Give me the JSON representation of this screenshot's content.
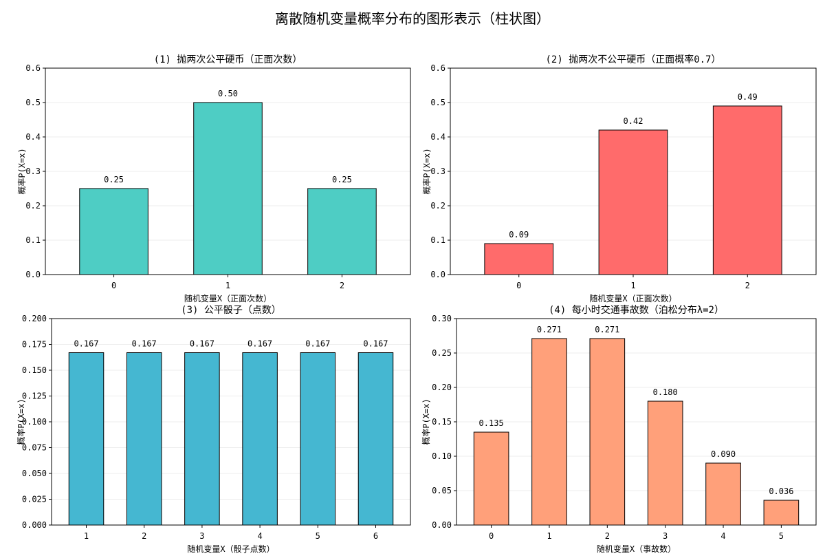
{
  "figure": {
    "title": "离散随机变量概率分布的图形表示（柱状图）"
  },
  "chart_data": [
    {
      "type": "bar",
      "title": "(1) 抛两次公平硬币（正面次数）",
      "xlabel": "随机变量X（正面次数）",
      "ylabel": "概率P(X=x)",
      "categories": [
        "0",
        "1",
        "2"
      ],
      "values": [
        0.25,
        0.5,
        0.25
      ],
      "value_labels": [
        "0.25",
        "0.50",
        "0.25"
      ],
      "ylim": [
        0,
        0.6
      ],
      "yticks": [
        0.0,
        0.1,
        0.2,
        0.3,
        0.4,
        0.5,
        0.6
      ],
      "ytick_labels": [
        "0.0",
        "0.1",
        "0.2",
        "0.3",
        "0.4",
        "0.5",
        "0.6"
      ],
      "color": "#4ECDC4",
      "grid": "y"
    },
    {
      "type": "bar",
      "title": "(2) 抛两次不公平硬币（正面概率0.7）",
      "xlabel": "随机变量X（正面次数）",
      "ylabel": "概率P(X=x)",
      "categories": [
        "0",
        "1",
        "2"
      ],
      "values": [
        0.09,
        0.42,
        0.49
      ],
      "value_labels": [
        "0.09",
        "0.42",
        "0.49"
      ],
      "ylim": [
        0,
        0.6
      ],
      "yticks": [
        0.0,
        0.1,
        0.2,
        0.3,
        0.4,
        0.5,
        0.6
      ],
      "ytick_labels": [
        "0.0",
        "0.1",
        "0.2",
        "0.3",
        "0.4",
        "0.5",
        "0.6"
      ],
      "color": "#FF6B6B",
      "grid": "y"
    },
    {
      "type": "bar",
      "title": "(3) 公平骰子（点数）",
      "xlabel": "随机变量X（骰子点数）",
      "ylabel": "概率P(X=x)",
      "categories": [
        "1",
        "2",
        "3",
        "4",
        "5",
        "6"
      ],
      "values": [
        0.167,
        0.167,
        0.167,
        0.167,
        0.167,
        0.167
      ],
      "value_labels": [
        "0.167",
        "0.167",
        "0.167",
        "0.167",
        "0.167",
        "0.167"
      ],
      "ylim": [
        0,
        0.2
      ],
      "yticks": [
        0.0,
        0.025,
        0.05,
        0.075,
        0.1,
        0.125,
        0.15,
        0.175,
        0.2
      ],
      "ytick_labels": [
        "0.000",
        "0.025",
        "0.050",
        "0.075",
        "0.100",
        "0.125",
        "0.150",
        "0.175",
        "0.200"
      ],
      "color": "#45B7D1",
      "grid": "y"
    },
    {
      "type": "bar",
      "title": "(4) 每小时交通事故数（泊松分布λ=2）",
      "xlabel": "随机变量X（事故数）",
      "ylabel": "概率P(X=x)",
      "categories": [
        "0",
        "1",
        "2",
        "3",
        "4",
        "5"
      ],
      "values": [
        0.135,
        0.271,
        0.271,
        0.18,
        0.09,
        0.036
      ],
      "value_labels": [
        "0.135",
        "0.271",
        "0.271",
        "0.180",
        "0.090",
        "0.036"
      ],
      "ylim": [
        0,
        0.3
      ],
      "yticks": [
        0.0,
        0.05,
        0.1,
        0.15,
        0.2,
        0.25,
        0.3
      ],
      "ytick_labels": [
        "0.00",
        "0.05",
        "0.10",
        "0.15",
        "0.20",
        "0.25",
        "0.30"
      ],
      "color": "#FFA07A",
      "grid": "y"
    }
  ]
}
